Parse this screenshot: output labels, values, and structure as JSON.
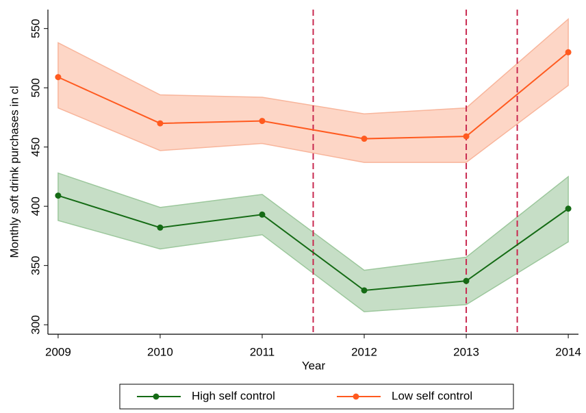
{
  "chart_data": {
    "type": "line",
    "x_label": "Year",
    "y_label": "Monthly soft drink purchases in cl",
    "x": [
      2009,
      2010,
      2011,
      2012,
      2013,
      2014
    ],
    "series": [
      {
        "name": "High self control",
        "color": "#156b15",
        "band_color": "#c6dec6",
        "band_edge": "#9cc79c",
        "values": [
          409,
          382,
          393,
          329,
          337,
          398
        ],
        "upper": [
          428,
          399,
          410,
          346,
          357,
          425
        ],
        "lower": [
          388,
          364,
          376,
          311,
          317,
          370
        ]
      },
      {
        "name": "Low self control",
        "color": "#ff5a1f",
        "band_color": "#fdd6c6",
        "band_edge": "#f8b59b",
        "values": [
          509,
          470,
          472,
          457,
          459,
          530
        ],
        "upper": [
          538,
          494,
          492,
          478,
          483,
          558
        ],
        "lower": [
          483,
          447,
          453,
          437,
          437,
          502
        ]
      }
    ],
    "vlines": [
      2011.5,
      2013,
      2013.5
    ],
    "vline_color": "#c8284f",
    "xlim": [
      2008.9,
      2014.1
    ],
    "xticks": [
      2009,
      2010,
      2011,
      2012,
      2013,
      2014
    ],
    "ylim": [
      292,
      566
    ],
    "yticks": [
      300,
      350,
      400,
      450,
      500,
      550
    ],
    "legend": "bottom"
  }
}
